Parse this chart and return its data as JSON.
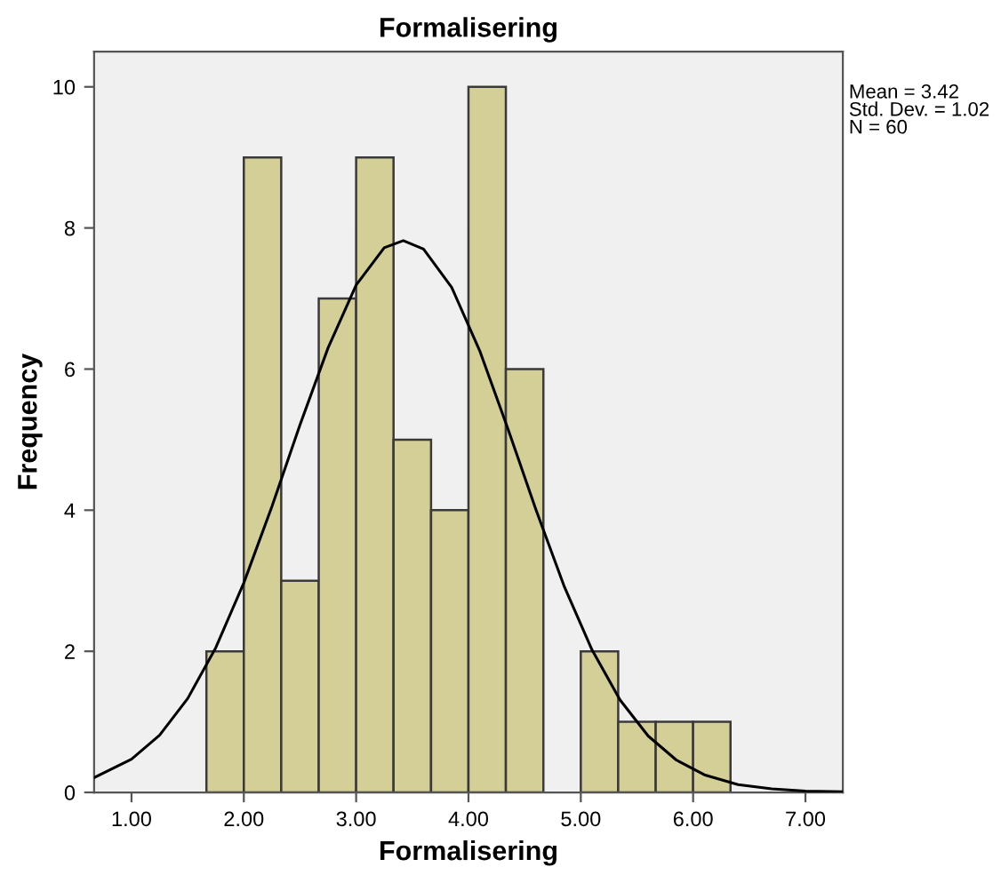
{
  "chart_data": {
    "type": "histogram",
    "title": "Formalisering",
    "xlabel": "Formalisering",
    "ylabel": "Frequency",
    "bins": [
      1.667,
      2.0,
      2.333,
      2.667,
      3.0,
      3.333,
      3.667,
      4.0,
      4.333,
      4.667,
      5.0,
      5.333,
      5.667,
      6.0,
      6.333
    ],
    "values": [
      2,
      9,
      3,
      7,
      9,
      5,
      4,
      10,
      6,
      0,
      2,
      1,
      1,
      1
    ],
    "color": "#d3cf96",
    "series": [
      {
        "type": "line",
        "color": "#000000",
        "x": [
          0.667,
          1.0,
          1.25,
          1.5,
          1.75,
          2.0,
          2.25,
          2.5,
          2.75,
          3.0,
          3.25,
          3.42,
          3.6,
          3.85,
          4.1,
          4.35,
          4.6,
          4.85,
          5.1,
          5.35,
          5.6,
          5.85,
          6.1,
          6.4,
          6.7,
          7.0,
          7.33
        ],
        "values": [
          0.21,
          0.47,
          0.81,
          1.33,
          2.05,
          2.97,
          4.05,
          5.21,
          6.3,
          7.19,
          7.72,
          7.82,
          7.7,
          7.16,
          6.26,
          5.16,
          4.01,
          2.93,
          2.02,
          1.31,
          0.8,
          0.46,
          0.25,
          0.11,
          0.05,
          0.02,
          0.01
        ]
      }
    ],
    "xlim": [
      0.667,
      7.333
    ],
    "ylim": [
      0,
      10.5
    ],
    "xticks": [
      {
        "value": 1,
        "label": "1.00"
      },
      {
        "value": 2,
        "label": "2.00"
      },
      {
        "value": 3,
        "label": "3.00"
      },
      {
        "value": 4,
        "label": "4.00"
      },
      {
        "value": 5,
        "label": "5.00"
      },
      {
        "value": 6,
        "label": "6.00"
      },
      {
        "value": 7,
        "label": "7.00"
      }
    ],
    "yticks": [
      0,
      2,
      4,
      6,
      8,
      10
    ],
    "grid": false,
    "annotations": [
      "Mean = 3.42\nStd. Dev. = 1.02\nN = 60"
    ]
  }
}
